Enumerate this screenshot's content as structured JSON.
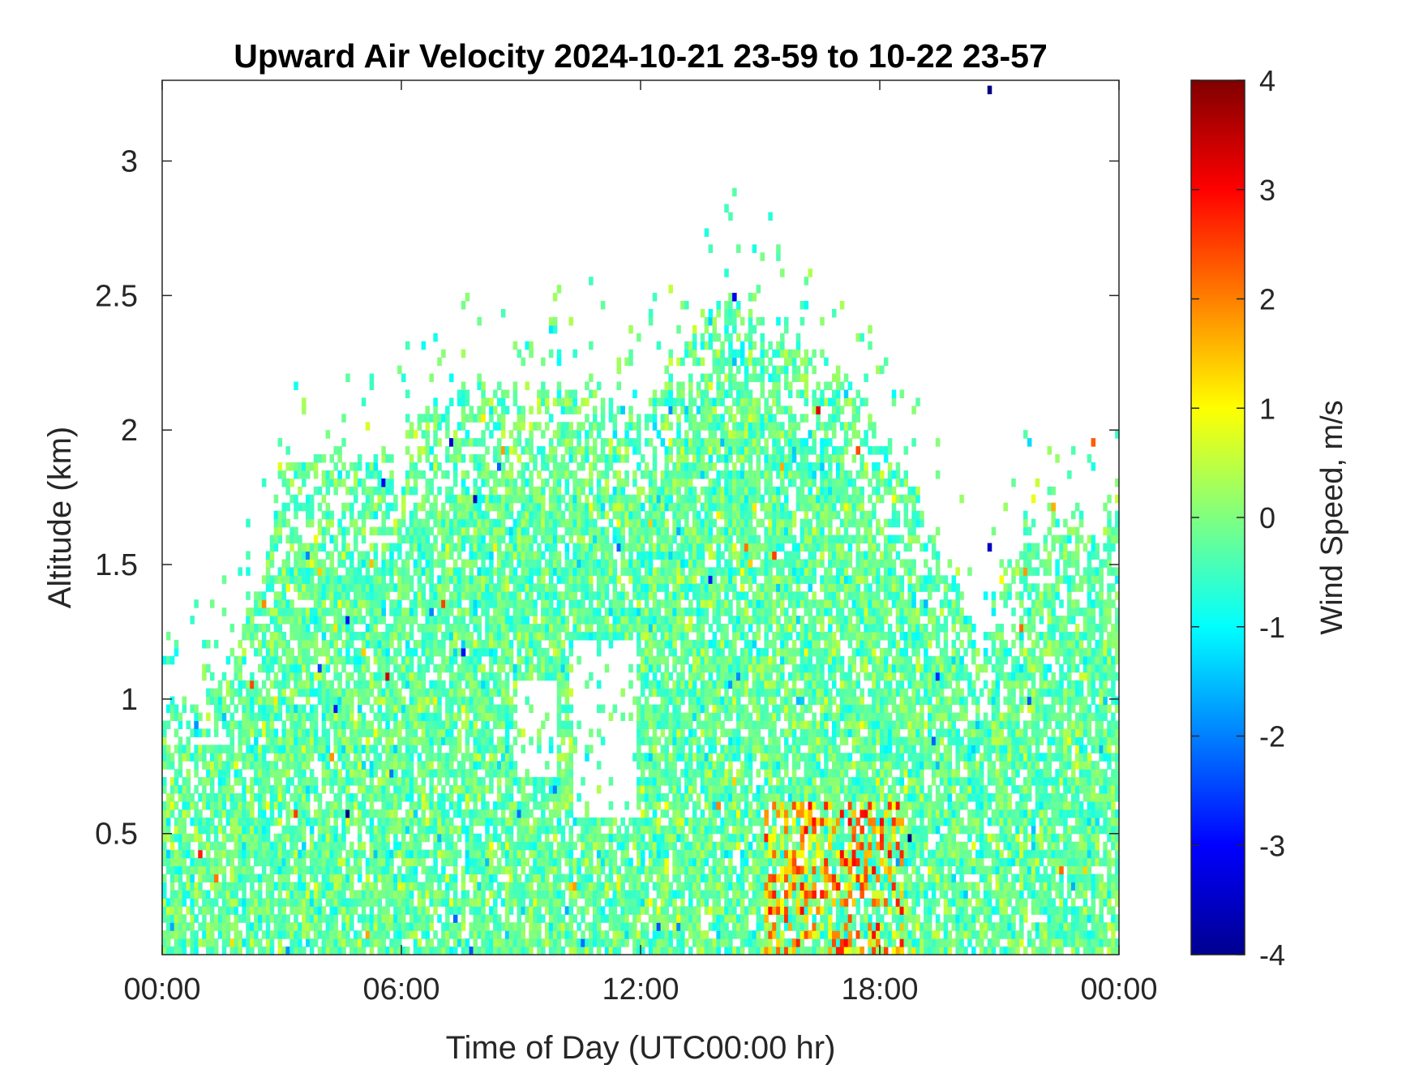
{
  "chart_data": {
    "type": "heatmap",
    "title": "Upward Air Velocity 2024-10-21 23-59 to 10-22 23-57",
    "xlabel": "Time of Day (UTC00:00 hr)",
    "ylabel": "Altitude (km)",
    "colorbar_label": "Wind Speed, m/s",
    "x_tick_labels": [
      "00:00",
      "06:00",
      "12:00",
      "18:00",
      "00:00"
    ],
    "x_tick_hours": [
      0,
      6,
      12,
      18,
      24
    ],
    "xlim_hours": [
      0,
      24
    ],
    "y_ticks": [
      0.5,
      1,
      1.5,
      2,
      2.5,
      3
    ],
    "y_tick_labels": [
      "0.5",
      "1",
      "1.5",
      "2",
      "2.5",
      "3"
    ],
    "ylim": [
      0.05,
      3.3
    ],
    "clim": [
      -4,
      4
    ],
    "colorbar_ticks": [
      -4,
      -3,
      -2,
      -1,
      0,
      1,
      2,
      3,
      4
    ],
    "colorbar_tick_labels": [
      "-4",
      "-3",
      "-2",
      "-1",
      "0",
      "1",
      "2",
      "3",
      "4"
    ],
    "colormap": "jet",
    "grid": false,
    "time_resolution_minutes": 6,
    "altitude_resolution_km": 0.03,
    "echo_top_profile": [
      {
        "hour": 0.0,
        "top_km": 0.95
      },
      {
        "hour": 1.0,
        "top_km": 1.0
      },
      {
        "hour": 2.0,
        "top_km": 1.25
      },
      {
        "hour": 2.6,
        "top_km": 1.55
      },
      {
        "hour": 3.0,
        "top_km": 1.85
      },
      {
        "hour": 4.0,
        "top_km": 1.95
      },
      {
        "hour": 5.0,
        "top_km": 1.85
      },
      {
        "hour": 6.0,
        "top_km": 1.9
      },
      {
        "hour": 7.0,
        "top_km": 2.1
      },
      {
        "hour": 8.0,
        "top_km": 2.15
      },
      {
        "hour": 9.0,
        "top_km": 2.1
      },
      {
        "hour": 10.0,
        "top_km": 2.15
      },
      {
        "hour": 11.0,
        "top_km": 2.15
      },
      {
        "hour": 12.0,
        "top_km": 2.05
      },
      {
        "hour": 12.8,
        "top_km": 2.25
      },
      {
        "hour": 13.5,
        "top_km": 2.45
      },
      {
        "hour": 14.2,
        "top_km": 2.5
      },
      {
        "hour": 15.0,
        "top_km": 2.4
      },
      {
        "hour": 16.0,
        "top_km": 2.3
      },
      {
        "hour": 17.0,
        "top_km": 2.2
      },
      {
        "hour": 18.0,
        "top_km": 1.95
      },
      {
        "hour": 19.0,
        "top_km": 1.7
      },
      {
        "hour": 20.0,
        "top_km": 1.4
      },
      {
        "hour": 20.5,
        "top_km": 1.15
      },
      {
        "hour": 21.0,
        "top_km": 1.5
      },
      {
        "hour": 22.0,
        "top_km": 1.65
      },
      {
        "hour": 23.0,
        "top_km": 1.65
      },
      {
        "hour": 24.0,
        "top_km": 1.7
      }
    ],
    "data_gaps": [
      {
        "hour_range": [
          10.2,
          11.8
        ],
        "altitude_km": [
          0.55,
          1.2
        ]
      },
      {
        "hour_range": [
          8.8,
          9.8
        ],
        "altitude_km": [
          0.7,
          1.05
        ]
      }
    ],
    "features": [
      {
        "name": "low-level updraft cores",
        "hour_range": [
          15.0,
          18.5
        ],
        "altitude_km": [
          0.05,
          0.6
        ],
        "velocity_range": [
          0.5,
          3.0
        ]
      },
      {
        "name": "isolated downdraft pixel",
        "hour": 20.7,
        "altitude_km": 1.55,
        "velocity": -3.5
      },
      {
        "name": "isolated downdraft pixel",
        "hour": 20.7,
        "altitude_km": 3.25,
        "velocity": -4.0
      }
    ],
    "typical_velocity_range": [
      -1.0,
      0.5
    ]
  }
}
